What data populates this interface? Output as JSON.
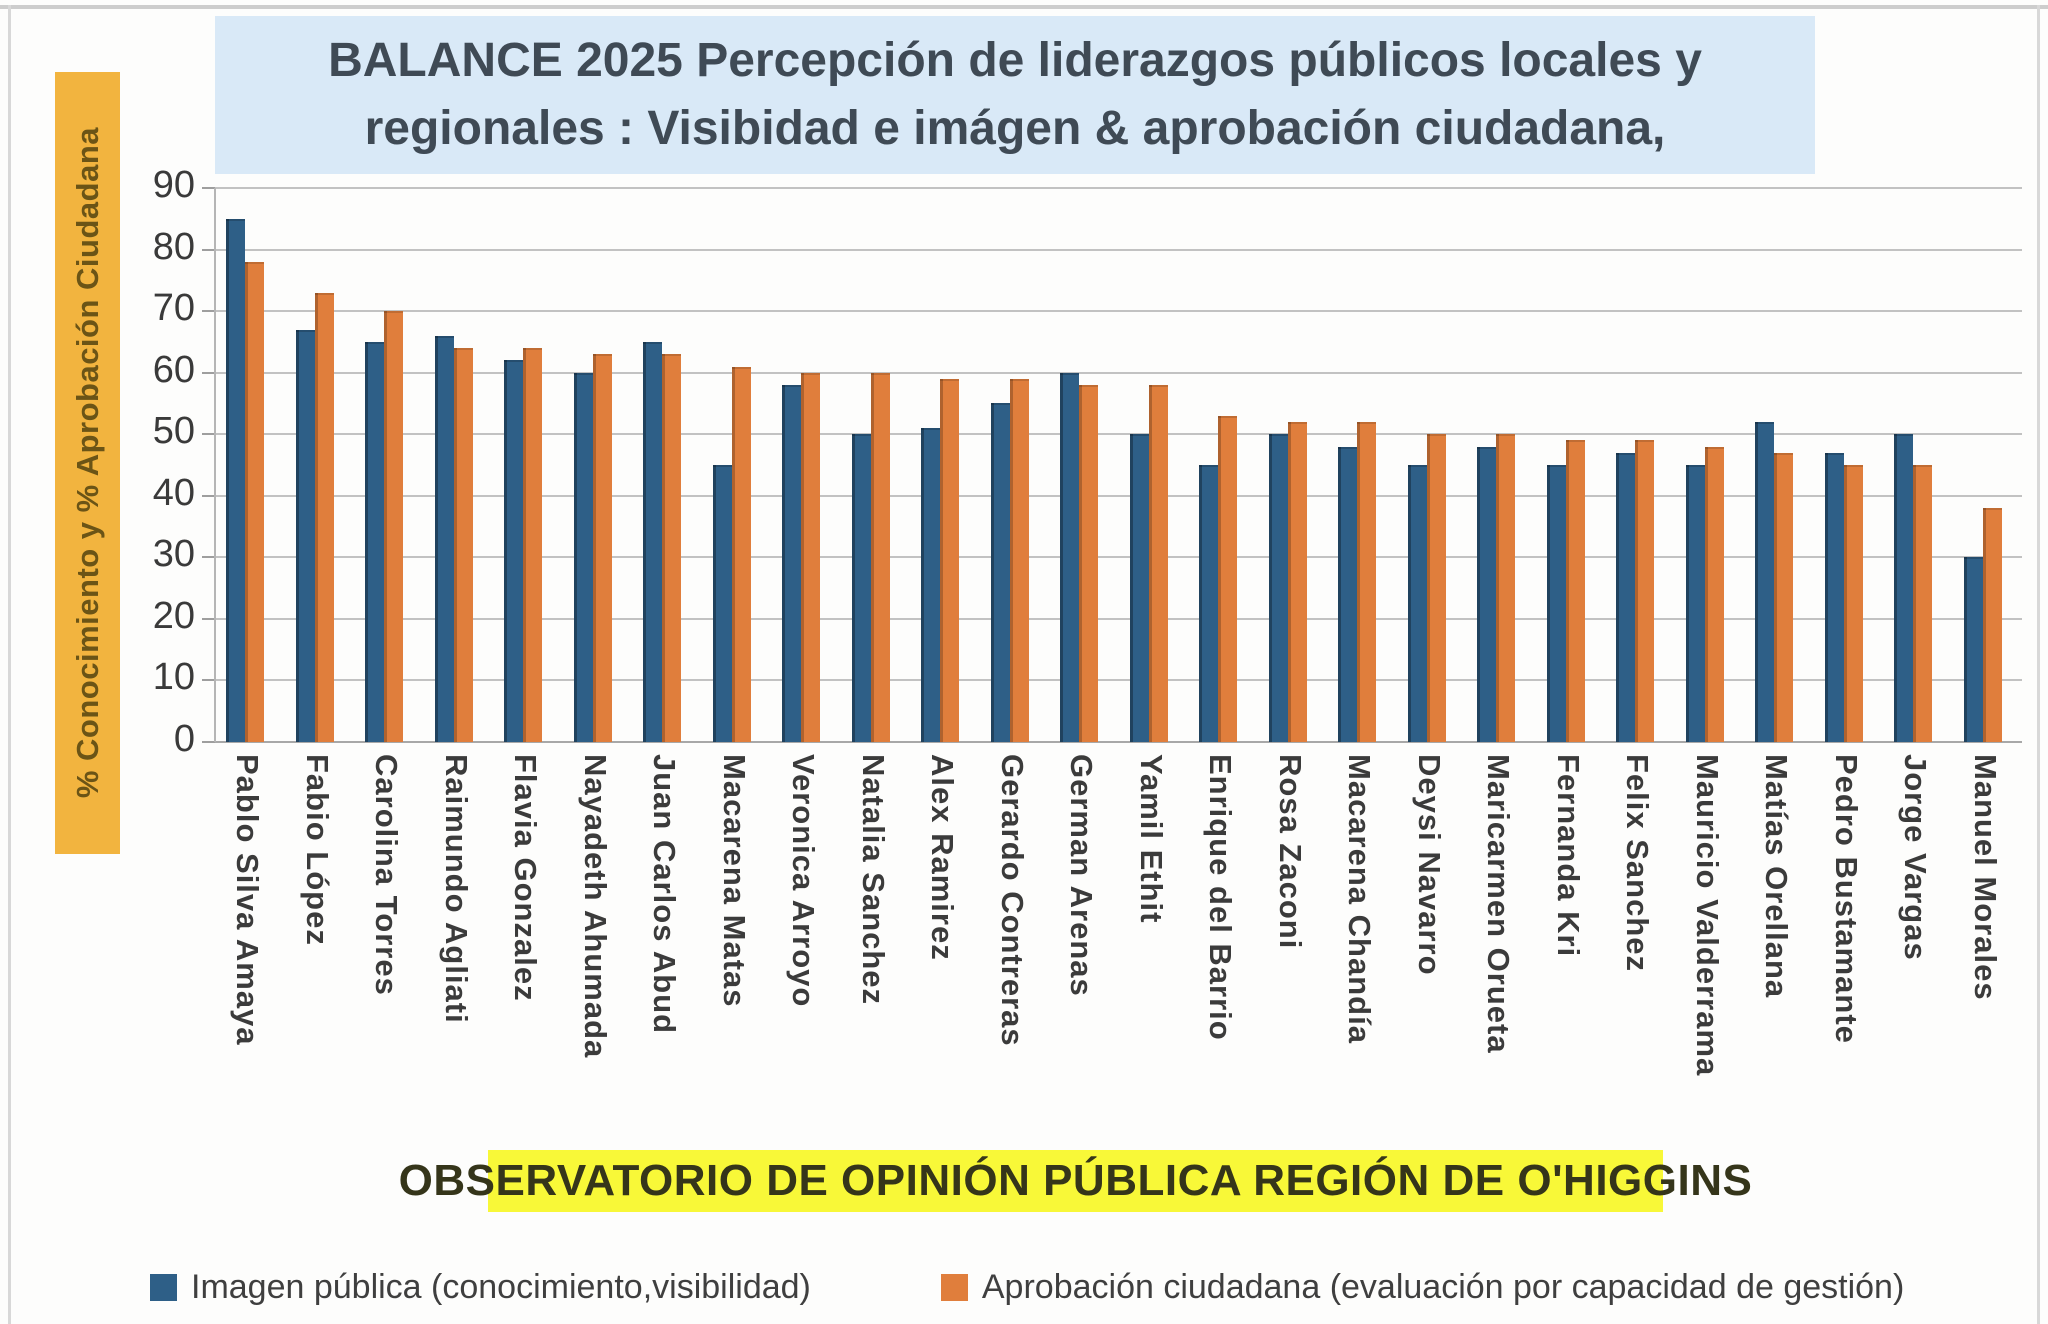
{
  "chart_data": {
    "type": "bar",
    "title": "BALANCE 2025 Percepción de liderazgos públicos locales y regionales : Visibidad e imágen & aprobación ciudadana,",
    "title_line1": "BALANCE 2025 Percepción de liderazgos públicos locales y",
    "title_line2": "regionales : Visibidad e imágen & aprobación ciudadana,",
    "ylabel": "% Conocimiento y % Aprobación Ciudadana",
    "footer": "OBSERVATORIO DE OPINIÓN PÚBLICA REGIÓN DE O'HIGGINS",
    "ylim": [
      0,
      90
    ],
    "yticks": [
      90,
      80,
      70,
      60,
      50,
      40,
      30,
      20,
      10,
      0
    ],
    "grid": true,
    "legend_position": "bottom",
    "categories": [
      "Pablo Silva Amaya",
      "Fabio López",
      "Carolina Torres",
      "Raimundo Agliati",
      "Flavia Gonzalez",
      "Nayadeth Ahumada",
      "Juan Carlos Abud",
      "Macarena Matas",
      "Veronica Arroyo",
      "Natalia Sanchez",
      "Alex Ramirez",
      "Gerardo Contreras",
      "German Arenas",
      "Yamil Ethit",
      "Enrique del Barrio",
      "Rosa Zaconi",
      "Macarena Chandía",
      "Deysi Navarro",
      "Maricarmen Orueta",
      "Fernanda Kri",
      "Felix Sanchez",
      "Mauricio Valderrama",
      "Matías Orellana",
      "Pedro Bustamante",
      "Jorge Vargas",
      "Manuel Morales"
    ],
    "series": [
      {
        "name": "Imagen pública (conocimiento,visibilidad)",
        "color": "#2e5f87",
        "values": [
          85,
          67,
          65,
          66,
          62,
          60,
          65,
          45,
          58,
          50,
          51,
          55,
          60,
          50,
          45,
          50,
          48,
          45,
          48,
          45,
          47,
          45,
          52,
          47,
          50,
          30
        ]
      },
      {
        "name": "Aprobación ciudadana (evaluación por capacidad de gestión)",
        "color": "#e07e3c",
        "values": [
          78,
          73,
          70,
          64,
          64,
          63,
          63,
          61,
          60,
          60,
          59,
          59,
          58,
          58,
          53,
          52,
          52,
          50,
          50,
          49,
          49,
          48,
          47,
          45,
          45,
          38
        ]
      }
    ],
    "colors": {
      "title_background": "#d9e9f7",
      "title_text": "#3f4a55",
      "ylabel_background": "#f2b43f",
      "ylabel_text": "#6b5416",
      "footer_background": "#f8f838",
      "footer_text": "#35351a",
      "gridline": "#c2c2c2",
      "tick_text": "#3a3a3a",
      "bar_blue": "#2e5f87",
      "bar_orange": "#e07e3c"
    }
  }
}
